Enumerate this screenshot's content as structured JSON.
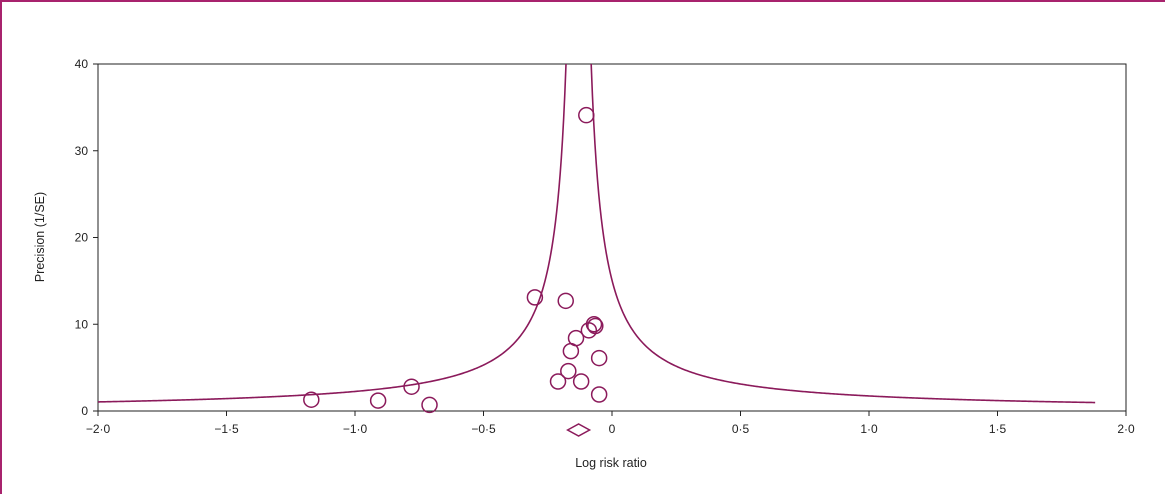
{
  "chart_data": {
    "type": "scatter",
    "title": "",
    "xlabel": "Log risk ratio",
    "ylabel": "Precision (1/SE)",
    "xlim": [
      -2.0,
      2.0
    ],
    "ylim": [
      0,
      40
    ],
    "x_ticks": [
      -2.0,
      -1.5,
      -1.0,
      -0.5,
      0,
      0.5,
      1.0,
      1.5,
      2.0
    ],
    "x_tick_labels": [
      "−2·0",
      "−1·5",
      "−1·0",
      "−0·5",
      "0",
      "0·5",
      "1·0",
      "1·5",
      "2·0"
    ],
    "y_ticks": [
      0,
      10,
      20,
      30,
      40
    ],
    "y_tick_labels": [
      "0",
      "10",
      "20",
      "30",
      "40"
    ],
    "grid": false,
    "colors": {
      "marker": "#8b1a5b",
      "funnel": "#8b1a5b",
      "frame": "#a8236d"
    },
    "pooled_estimate": -0.13,
    "funnel_x_range": [
      -2.0,
      1.88
    ],
    "points": [
      {
        "x": -1.17,
        "y": 1.3
      },
      {
        "x": -0.91,
        "y": 1.2
      },
      {
        "x": -0.78,
        "y": 2.8
      },
      {
        "x": -0.71,
        "y": 0.7
      },
      {
        "x": -0.3,
        "y": 13.1
      },
      {
        "x": -0.21,
        "y": 3.4
      },
      {
        "x": -0.18,
        "y": 12.7
      },
      {
        "x": -0.17,
        "y": 4.6
      },
      {
        "x": -0.16,
        "y": 6.9
      },
      {
        "x": -0.14,
        "y": 8.4
      },
      {
        "x": -0.12,
        "y": 3.4
      },
      {
        "x": -0.1,
        "y": 34.1
      },
      {
        "x": -0.09,
        "y": 9.3
      },
      {
        "x": -0.07,
        "y": 10.0
      },
      {
        "x": -0.065,
        "y": 9.8
      },
      {
        "x": -0.05,
        "y": 6.1
      },
      {
        "x": -0.05,
        "y": 1.9
      }
    ]
  }
}
